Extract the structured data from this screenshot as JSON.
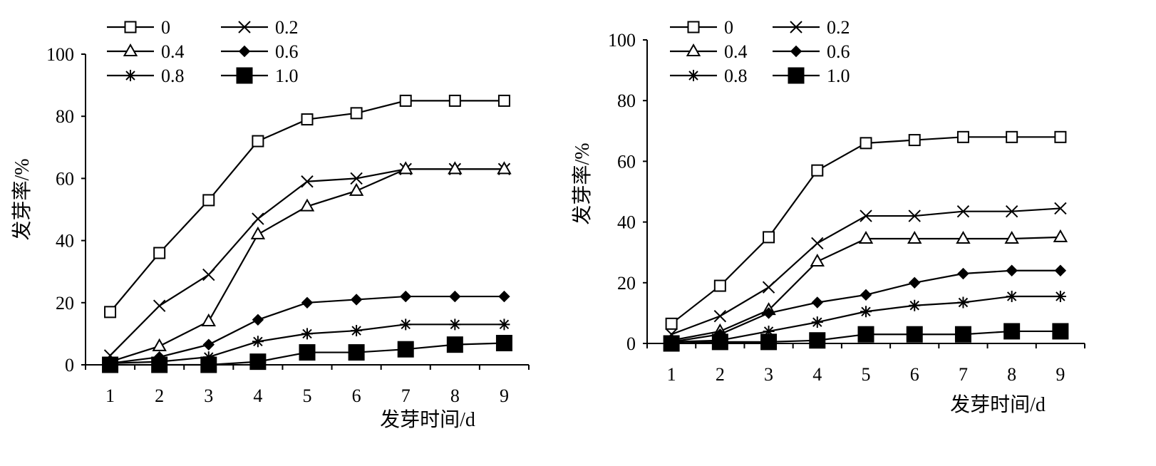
{
  "chart_data": [
    {
      "type": "line",
      "xlabel": "发芽时间/d",
      "ylabel": "发芽率/%",
      "x": [
        1,
        2,
        3,
        4,
        5,
        6,
        7,
        8,
        9
      ],
      "ylim": [
        0,
        100
      ],
      "yticks": [
        0,
        20,
        40,
        60,
        80,
        100
      ],
      "legend_position": "top-left",
      "series": [
        {
          "name": "0",
          "marker": "open-square",
          "values": [
            17,
            36,
            53,
            72,
            79,
            81,
            85,
            85,
            85
          ]
        },
        {
          "name": "0.2",
          "marker": "x",
          "values": [
            3,
            19,
            29,
            47,
            59,
            60,
            63,
            63,
            63
          ]
        },
        {
          "name": "0.4",
          "marker": "open-triangle",
          "values": [
            1,
            6,
            14,
            42,
            51,
            56,
            63,
            63,
            63
          ]
        },
        {
          "name": "0.6",
          "marker": "filled-diamond",
          "values": [
            0.5,
            2.5,
            6.5,
            14.5,
            20,
            21,
            22,
            22,
            22
          ]
        },
        {
          "name": "0.8",
          "marker": "asterisk",
          "values": [
            0.5,
            1,
            2.5,
            7.5,
            10,
            11,
            13,
            13,
            13
          ]
        },
        {
          "name": "1.0",
          "marker": "filled-square",
          "values": [
            0,
            0,
            0,
            1,
            4,
            4,
            5,
            6.5,
            7
          ]
        }
      ]
    },
    {
      "type": "line",
      "xlabel": "发芽时间/d",
      "ylabel": "发芽率/%",
      "x": [
        1,
        2,
        3,
        4,
        5,
        6,
        7,
        8,
        9
      ],
      "ylim": [
        0,
        100
      ],
      "yticks": [
        0,
        20,
        40,
        60,
        80,
        100
      ],
      "legend_position": "top-left",
      "series": [
        {
          "name": "0",
          "marker": "open-square",
          "values": [
            6.5,
            19,
            35,
            57,
            66,
            67,
            68,
            68,
            68
          ]
        },
        {
          "name": "0.2",
          "marker": "x",
          "values": [
            3,
            9,
            18.5,
            33,
            42,
            42,
            43.5,
            43.5,
            44.5
          ]
        },
        {
          "name": "0.4",
          "marker": "open-triangle",
          "values": [
            1,
            4,
            11,
            27,
            34.5,
            34.5,
            34.5,
            34.5,
            35
          ]
        },
        {
          "name": "0.6",
          "marker": "filled-diamond",
          "values": [
            0.5,
            3,
            10,
            13.5,
            16,
            20,
            23,
            24,
            24
          ]
        },
        {
          "name": "0.8",
          "marker": "asterisk",
          "values": [
            0.5,
            1,
            4,
            7,
            10.5,
            12.5,
            13.5,
            15.5,
            15.5
          ]
        },
        {
          "name": "1.0",
          "marker": "filled-square",
          "values": [
            0,
            0.5,
            0.5,
            1,
            3,
            3,
            3,
            4,
            4
          ]
        }
      ]
    }
  ]
}
